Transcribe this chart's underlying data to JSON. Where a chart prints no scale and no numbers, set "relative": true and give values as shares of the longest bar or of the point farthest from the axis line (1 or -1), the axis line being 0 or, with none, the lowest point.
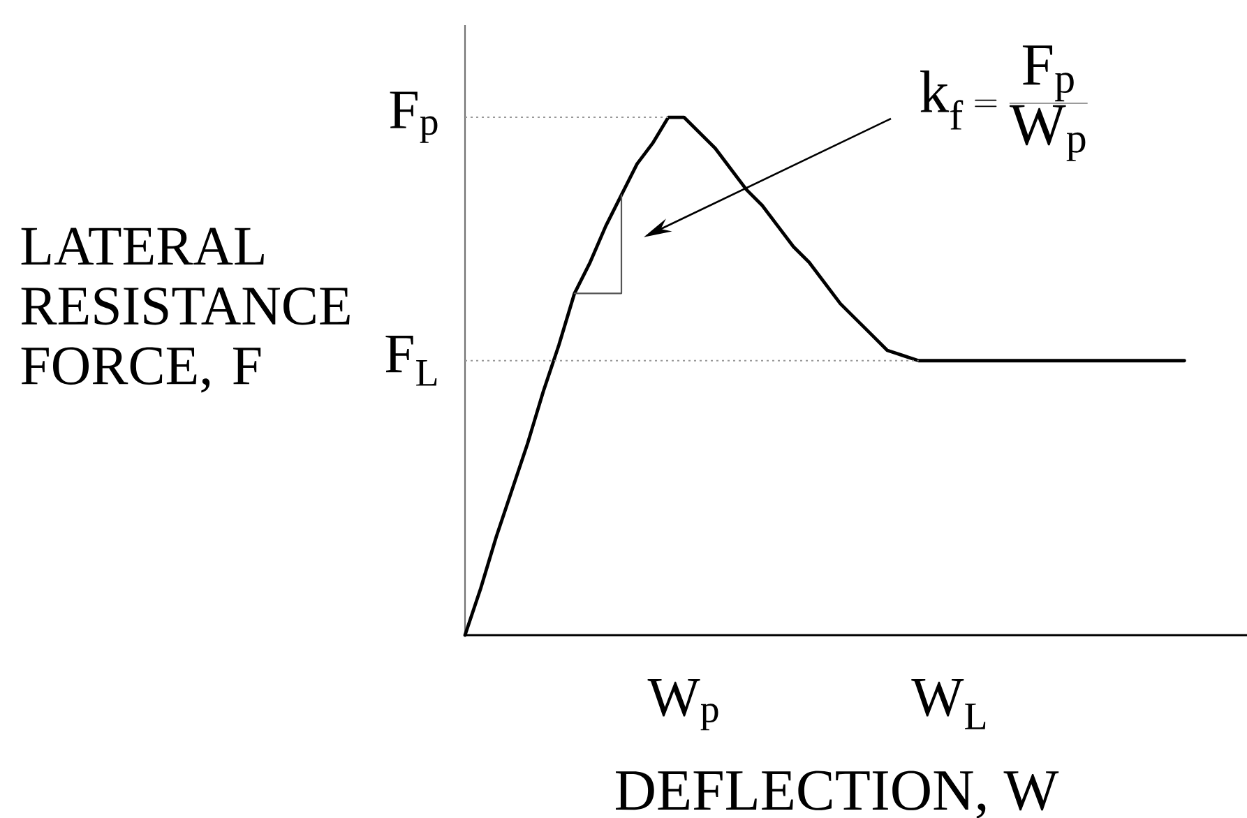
{
  "chart_data": {
    "type": "line",
    "relative": true,
    "xlabel": "DEFLECTION, W",
    "ylabel": "LATERAL RESISTANCE FORCE, F",
    "categories": [
      null,
      null,
      null,
      null,
      null,
      null,
      null,
      null,
      null,
      null,
      null,
      null,
      null,
      null,
      "W$_{p}$",
      null,
      null,
      null,
      null,
      null,
      null,
      null,
      null,
      null,
      null,
      null,
      null,
      null,
      null,
      null,
      null,
      "W$_{L}$",
      null,
      null,
      null,
      null,
      null,
      null,
      null,
      null,
      null,
      null,
      null,
      null,
      null,
      null,
      null,
      null,
      null,
      null,
      null
    ],
    "series": [
      {
        "color": "#000000",
        "values": [
          0,
          0.09,
          0.19,
          0.28,
          0.37,
          0.47,
          0.56,
          0.66,
          0.72,
          0.79,
          0.85,
          0.91,
          0.95,
          1,
          1,
          0.97,
          0.94,
          0.9,
          0.86,
          0.83,
          0.79,
          0.75,
          0.72,
          0.68,
          0.64,
          0.61,
          0.58,
          0.55,
          0.54,
          0.53,
          0.53,
          0.53,
          0.53,
          0.53,
          0.53,
          0.53,
          0.53,
          0.53,
          0.53,
          0.53,
          0.53,
          0.53,
          0.53,
          0.53,
          0.53,
          0.53,
          0.53,
          null,
          null,
          null,
          null
        ]
      },
      {
        "type": "step",
        "color": "#555555",
        "values": [
          null,
          null,
          null,
          null,
          null,
          null,
          null,
          0.66,
          0.66,
          0.66,
          0.85,
          null,
          null,
          null,
          null,
          null,
          null,
          null,
          null,
          null,
          null,
          null,
          null,
          null,
          null,
          null,
          null,
          null,
          null,
          null,
          null,
          null,
          null,
          null,
          null,
          null,
          null,
          null,
          null,
          null,
          null,
          null,
          null,
          null,
          null,
          null,
          null,
          null,
          null,
          null,
          null
        ]
      }
    ],
    "ref_lines": [
      {
        "axis": "y",
        "value": 1,
        "label": "F$_{p}$",
        "color": "#999999",
        "line_style": "dotted"
      },
      {
        "axis": "y",
        "value": 0.53,
        "label": "F$_{L}$",
        "color": "#999999",
        "line_style": "dotted"
      }
    ],
    "annotations": [
      "\\mathrm{k_f} = \\frac{\\mathrm{F_p}}{\\mathrm{W_p}}"
    ]
  }
}
